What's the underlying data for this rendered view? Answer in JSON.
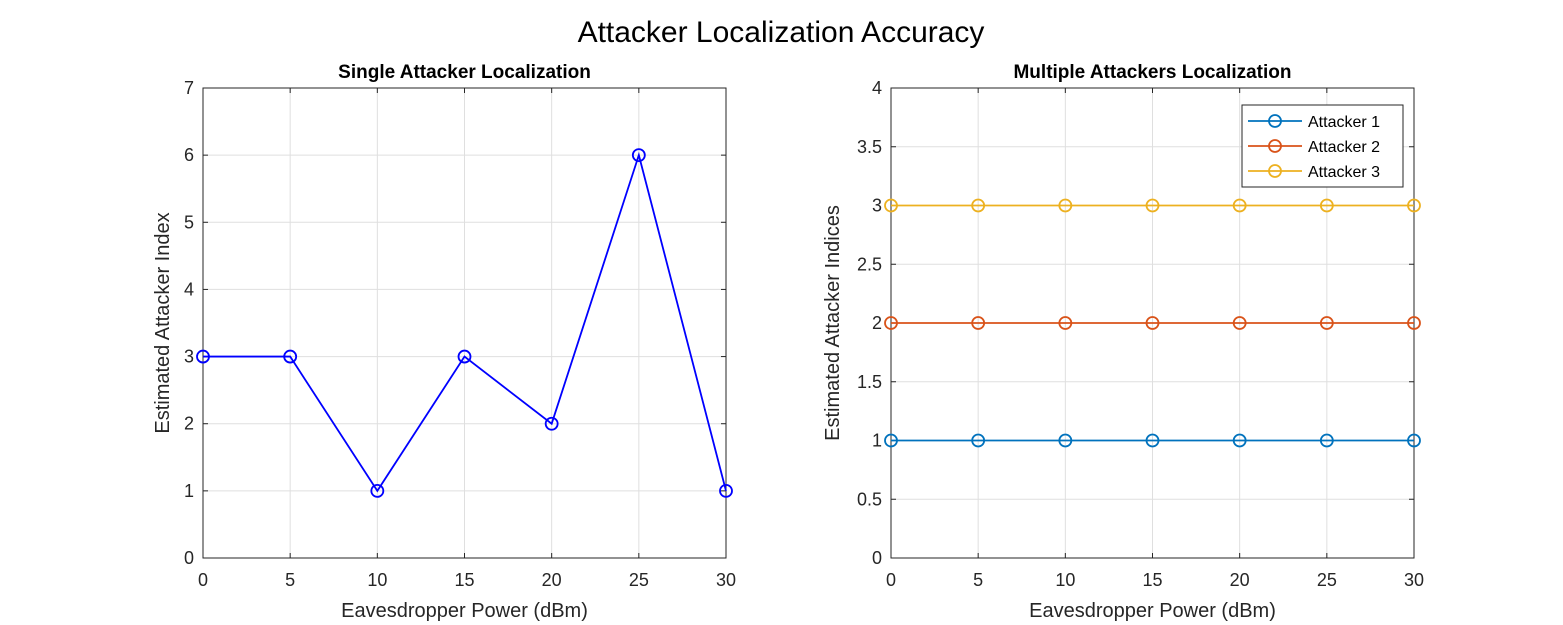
{
  "figure": {
    "title": "Attacker Localization Accuracy"
  },
  "chart_data": [
    {
      "type": "line",
      "title": "Single Attacker Localization",
      "xlabel": "Eavesdropper Power (dBm)",
      "ylabel": "Estimated Attacker Index",
      "x": [
        0,
        5,
        10,
        15,
        20,
        25,
        30
      ],
      "xlim": [
        0,
        30
      ],
      "ylim": [
        0,
        7
      ],
      "xticks": [
        0,
        5,
        10,
        15,
        20,
        25,
        30
      ],
      "yticks": [
        0,
        1,
        2,
        3,
        4,
        5,
        6,
        7
      ],
      "grid": true,
      "legend": false,
      "series": [
        {
          "values": [
            3,
            3,
            1,
            3,
            2,
            6,
            1
          ],
          "color": "#0000ff",
          "marker": "circle"
        }
      ]
    },
    {
      "type": "line",
      "title": "Multiple Attackers Localization",
      "xlabel": "Eavesdropper Power (dBm)",
      "ylabel": "Estimated Attacker Indices",
      "x": [
        0,
        5,
        10,
        15,
        20,
        25,
        30
      ],
      "xlim": [
        0,
        30
      ],
      "ylim": [
        0,
        4
      ],
      "xticks": [
        0,
        5,
        10,
        15,
        20,
        25,
        30
      ],
      "yticks": [
        0,
        0.5,
        1,
        1.5,
        2,
        2.5,
        3,
        3.5,
        4
      ],
      "grid": true,
      "legend": "top-right",
      "series": [
        {
          "name": "Attacker 1",
          "values": [
            1,
            1,
            1,
            1,
            1,
            1,
            1
          ],
          "color": "#0072bd",
          "marker": "circle"
        },
        {
          "name": "Attacker 2",
          "values": [
            2,
            2,
            2,
            2,
            2,
            2,
            2
          ],
          "color": "#d95319",
          "marker": "circle"
        },
        {
          "name": "Attacker 3",
          "values": [
            3,
            3,
            3,
            3,
            3,
            3,
            3
          ],
          "color": "#edb120",
          "marker": "circle"
        }
      ]
    }
  ]
}
